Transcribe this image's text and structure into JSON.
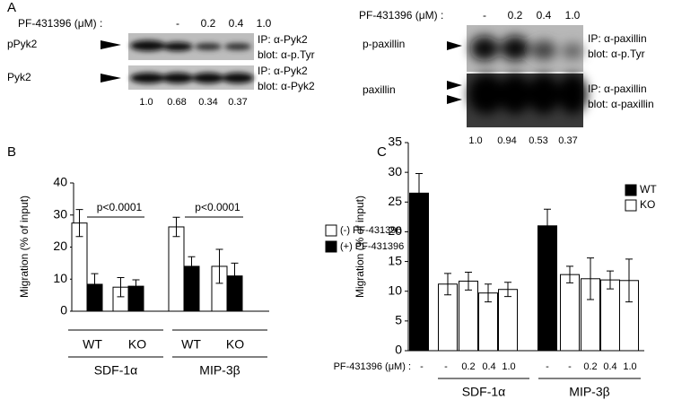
{
  "panel_labels": [
    "A",
    "B",
    "C"
  ],
  "blot_left": {
    "treatment_label": "PF-431396 (μM) :",
    "doses": [
      "-",
      "0.2",
      "0.4",
      "1.0"
    ],
    "rows": [
      {
        "label": "pPyk2",
        "ip": "IP: α-Pyk2",
        "blot": "blot: α-p.Tyr"
      },
      {
        "label": "Pyk2",
        "ip": "IP: α-Pyk2",
        "blot": "blot: α-Pyk2"
      }
    ],
    "quantification": [
      "1.0",
      "0.68",
      "0.34",
      "0.37"
    ]
  },
  "blot_right": {
    "treatment_label": "PF-431396 (μM) :",
    "doses": [
      "-",
      "0.2",
      "0.4",
      "1.0"
    ],
    "rows": [
      {
        "label": "p-paxillin",
        "ip": "IP: α-paxillin",
        "blot": "blot: α-p.Tyr"
      },
      {
        "label": "paxillin",
        "ip": "IP: α-paxillin",
        "blot": "blot: α-paxillin"
      }
    ],
    "quantification": [
      "1.0",
      "0.94",
      "0.53",
      "0.37"
    ]
  },
  "chart_data": [
    {
      "type": "bar",
      "y_label": "Migration (% of input)",
      "categories": [
        "WT",
        "KO",
        "WT",
        "KO"
      ],
      "groups": [
        "SDF-1α",
        "MIP-3β"
      ],
      "series": [
        {
          "name": "(-) PF-431396",
          "color": "#ffffff",
          "values": [
            27.5,
            7.5,
            26.3,
            14
          ],
          "errors": [
            4.2,
            3,
            3,
            5.3
          ]
        },
        {
          "name": "(+) PF-431396",
          "color": "#000000",
          "values": [
            8.4,
            7.8,
            14,
            11
          ],
          "errors": [
            3.3,
            2,
            3,
            4
          ]
        }
      ],
      "annotations": [
        "p<0.0001",
        "p<0.0001"
      ],
      "ylim": [
        0,
        40
      ],
      "yticks": [
        0,
        10,
        20,
        30,
        40
      ]
    },
    {
      "type": "bar",
      "y_label": "Migration (% of input)",
      "x_label": "PF-431396 (μM) :",
      "categories": [
        "-",
        "-",
        "0.2",
        "0.4",
        "1.0",
        "-",
        "-",
        "0.2",
        "0.4",
        "1.0"
      ],
      "groups": [
        "SDF-1α",
        "MIP-3β"
      ],
      "series": [
        {
          "name": "WT",
          "color": "#000000",
          "values": [
            26.5,
            null,
            null,
            null,
            null,
            21,
            null,
            null,
            null,
            null
          ],
          "errors": [
            3.3,
            null,
            null,
            null,
            null,
            2.8,
            null,
            null,
            null,
            null
          ]
        },
        {
          "name": "KO",
          "color": "#ffffff",
          "values": [
            null,
            11.2,
            11.7,
            9.7,
            10.3,
            null,
            12.8,
            12.1,
            11.9,
            11.8
          ],
          "errors": [
            null,
            1.8,
            1.5,
            1.5,
            1.2,
            null,
            1.4,
            3.5,
            1.5,
            3.6
          ]
        }
      ],
      "ylim": [
        0,
        35
      ],
      "yticks": [
        0,
        5,
        10,
        15,
        20,
        25,
        30,
        35
      ]
    }
  ]
}
